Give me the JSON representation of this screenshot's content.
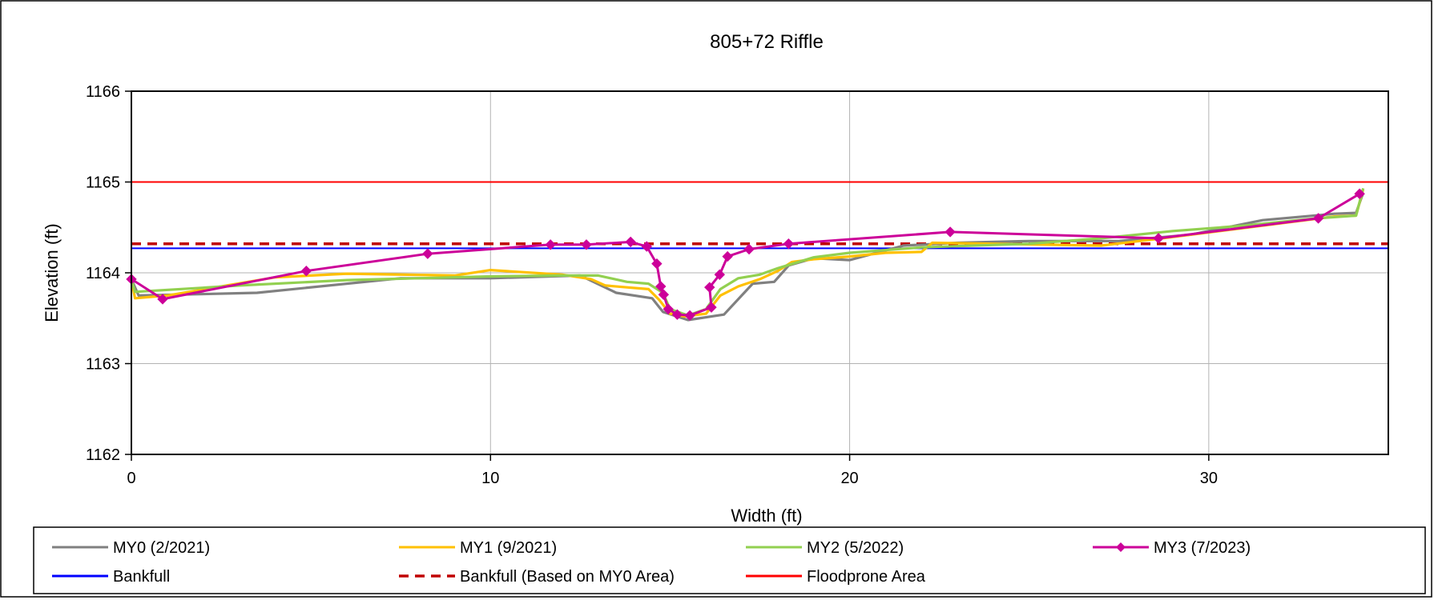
{
  "chart_data": {
    "type": "line",
    "title": "805+72 Riffle",
    "xlabel": "Width (ft)",
    "ylabel": "Elevation (ft)",
    "xlim": [
      0,
      35
    ],
    "ylim": [
      1162,
      1166
    ],
    "xticks": [
      "0",
      "10",
      "20",
      "30"
    ],
    "yticks": [
      "1162",
      "1163",
      "1164",
      "1165",
      "1166"
    ],
    "grid": true,
    "legend_position": "bottom",
    "series": [
      {
        "name": "MY0 (2/2021)",
        "color": "#808080",
        "style": "solid",
        "marker": "none",
        "points": [
          [
            0,
            1163.93
          ],
          [
            0.2,
            1163.75
          ],
          [
            3.5,
            1163.78
          ],
          [
            7.5,
            1163.94
          ],
          [
            10,
            1163.94
          ],
          [
            12.5,
            1163.97
          ],
          [
            13.5,
            1163.78
          ],
          [
            14.5,
            1163.72
          ],
          [
            14.8,
            1163.57
          ],
          [
            15.5,
            1163.48
          ],
          [
            16.5,
            1163.54
          ],
          [
            17.3,
            1163.88
          ],
          [
            17.9,
            1163.9
          ],
          [
            18.3,
            1164.08
          ],
          [
            19,
            1164.16
          ],
          [
            20,
            1164.14
          ],
          [
            21.5,
            1164.3
          ],
          [
            23,
            1164.33
          ],
          [
            25,
            1164.35
          ],
          [
            27.5,
            1164.35
          ],
          [
            29.5,
            1164.42
          ],
          [
            31.5,
            1164.58
          ],
          [
            33.5,
            1164.65
          ],
          [
            34.1,
            1164.66
          ],
          [
            34.3,
            1164.88
          ]
        ]
      },
      {
        "name": "MY1 (9/2021)",
        "color": "#ffc000",
        "style": "solid",
        "marker": "none",
        "points": [
          [
            0,
            1163.93
          ],
          [
            0.1,
            1163.72
          ],
          [
            1,
            1163.75
          ],
          [
            4,
            1163.95
          ],
          [
            6,
            1163.99
          ],
          [
            9,
            1163.97
          ],
          [
            10,
            1164.03
          ],
          [
            12,
            1163.98
          ],
          [
            12.8,
            1163.93
          ],
          [
            13.2,
            1163.86
          ],
          [
            13.8,
            1163.84
          ],
          [
            14.4,
            1163.82
          ],
          [
            14.7,
            1163.7
          ],
          [
            15,
            1163.55
          ],
          [
            15.4,
            1163.52
          ],
          [
            16,
            1163.55
          ],
          [
            16.4,
            1163.75
          ],
          [
            16.9,
            1163.85
          ],
          [
            17.5,
            1163.93
          ],
          [
            18,
            1164.02
          ],
          [
            18.4,
            1164.12
          ],
          [
            19,
            1164.15
          ],
          [
            20,
            1164.18
          ],
          [
            21,
            1164.22
          ],
          [
            22,
            1164.23
          ],
          [
            22.3,
            1164.33
          ],
          [
            27,
            1164.3
          ],
          [
            28.5,
            1164.37
          ],
          [
            31.5,
            1164.52
          ],
          [
            33.5,
            1164.62
          ],
          [
            34.1,
            1164.63
          ],
          [
            34.3,
            1164.92
          ]
        ]
      },
      {
        "name": "MY2 (5/2022)",
        "color": "#92d050",
        "style": "solid",
        "marker": "none",
        "points": [
          [
            0,
            1163.93
          ],
          [
            0.1,
            1163.79
          ],
          [
            3,
            1163.86
          ],
          [
            6,
            1163.92
          ],
          [
            10,
            1163.96
          ],
          [
            12,
            1163.97
          ],
          [
            13,
            1163.97
          ],
          [
            13.8,
            1163.9
          ],
          [
            14.4,
            1163.88
          ],
          [
            14.8,
            1163.78
          ],
          [
            15,
            1163.6
          ],
          [
            15.5,
            1163.53
          ],
          [
            16,
            1163.6
          ],
          [
            16.4,
            1163.82
          ],
          [
            16.9,
            1163.94
          ],
          [
            17.5,
            1163.98
          ],
          [
            18,
            1164.05
          ],
          [
            19,
            1164.17
          ],
          [
            20,
            1164.22
          ],
          [
            22,
            1164.28
          ],
          [
            25,
            1164.32
          ],
          [
            27,
            1164.38
          ],
          [
            29,
            1164.46
          ],
          [
            31,
            1164.52
          ],
          [
            33,
            1164.6
          ],
          [
            34.1,
            1164.63
          ],
          [
            34.3,
            1164.93
          ]
        ]
      },
      {
        "name": "MY3 (7/2023)",
        "color": "#cc0099",
        "style": "solid",
        "marker": "diamond",
        "points": [
          [
            0,
            1163.93
          ],
          [
            0.87,
            1163.71
          ],
          [
            4.87,
            1164.02
          ],
          [
            8.25,
            1164.21
          ],
          [
            11.67,
            1164.31
          ],
          [
            12.67,
            1164.31
          ],
          [
            13.9,
            1164.34
          ],
          [
            14.35,
            1164.29
          ],
          [
            14.63,
            1164.1
          ],
          [
            14.74,
            1163.85
          ],
          [
            14.82,
            1163.76
          ],
          [
            14.95,
            1163.6
          ],
          [
            15.2,
            1163.54
          ],
          [
            15.55,
            1163.53
          ],
          [
            16.15,
            1163.62
          ],
          [
            16.1,
            1163.84
          ],
          [
            16.38,
            1163.98
          ],
          [
            16.6,
            1164.18
          ],
          [
            17.2,
            1164.26
          ],
          [
            18.3,
            1164.32
          ],
          [
            22.8,
            1164.45
          ],
          [
            28.6,
            1164.38
          ],
          [
            33.05,
            1164.6
          ],
          [
            34.2,
            1164.87
          ]
        ]
      },
      {
        "name": "Bankfull",
        "color": "#0000ff",
        "style": "solid",
        "marker": "none",
        "points": [
          [
            0,
            1164.27
          ],
          [
            35,
            1164.27
          ]
        ]
      },
      {
        "name": "Bankfull (Based on MY0 Area)",
        "color": "#c00000",
        "style": "dashed",
        "marker": "none",
        "points": [
          [
            0,
            1164.32
          ],
          [
            35,
            1164.32
          ]
        ]
      },
      {
        "name": "Floodprone Area",
        "color": "#ff0000",
        "style": "solid",
        "marker": "none",
        "points": [
          [
            0,
            1165
          ],
          [
            35,
            1165
          ]
        ]
      }
    ]
  }
}
